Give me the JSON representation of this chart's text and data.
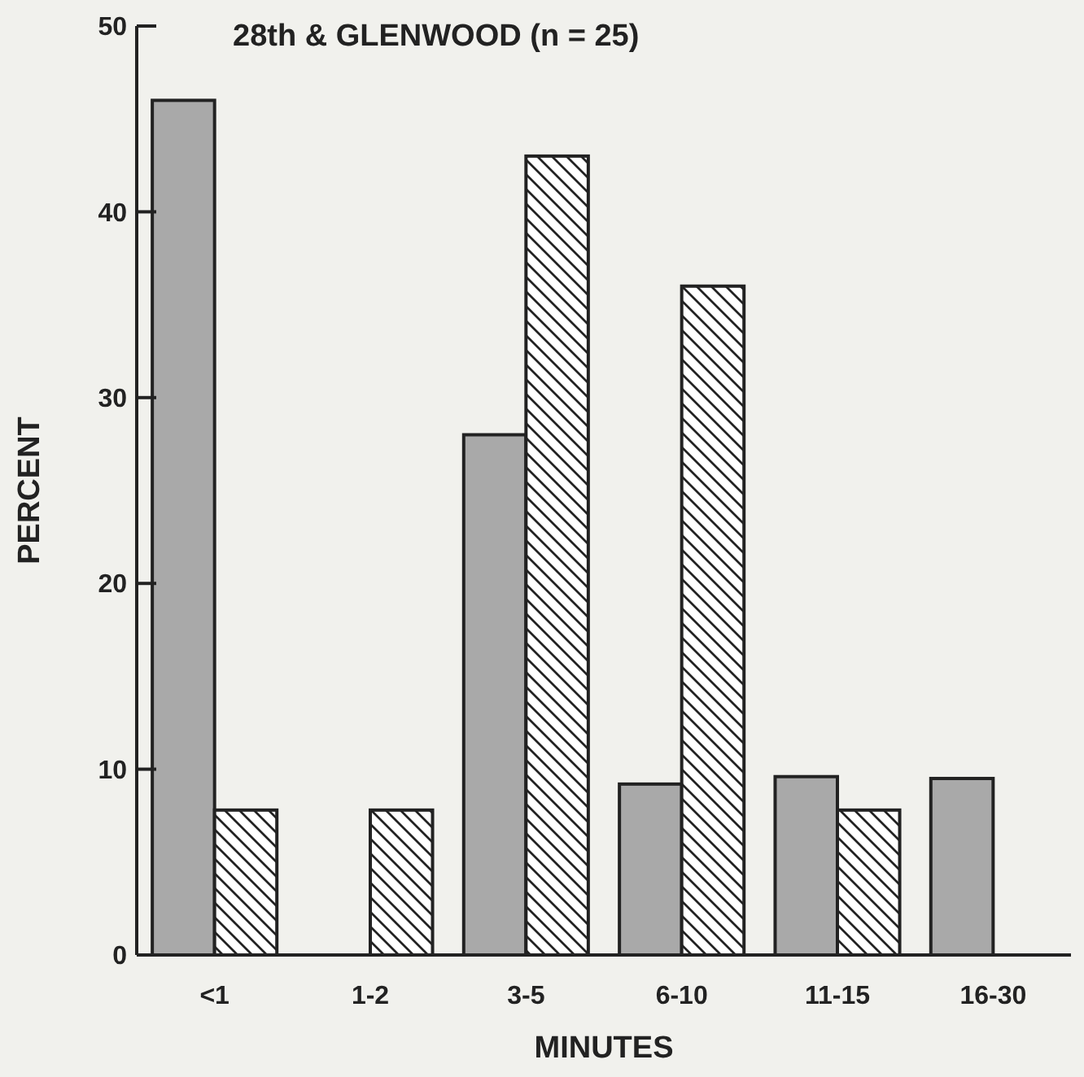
{
  "chart_data": {
    "type": "bar",
    "title": "28th & GLENWOOD (n = 25)",
    "xlabel": "MINUTES",
    "ylabel": "PERCENT",
    "categories": [
      "<1",
      "1-2",
      "3-5",
      "6-10",
      "11-15",
      "16-30"
    ],
    "series": [
      {
        "color": "#a9a9a9",
        "values": [
          46,
          null,
          28,
          9.2,
          9.6,
          9.5
        ]
      },
      {
        "color": "#222222",
        "values": [
          7.8,
          7.8,
          43,
          36,
          7.8,
          null
        ]
      }
    ],
    "ylim": [
      0,
      50
    ],
    "yticks": [
      0,
      10,
      20,
      30,
      40,
      50
    ],
    "grid": false
  }
}
